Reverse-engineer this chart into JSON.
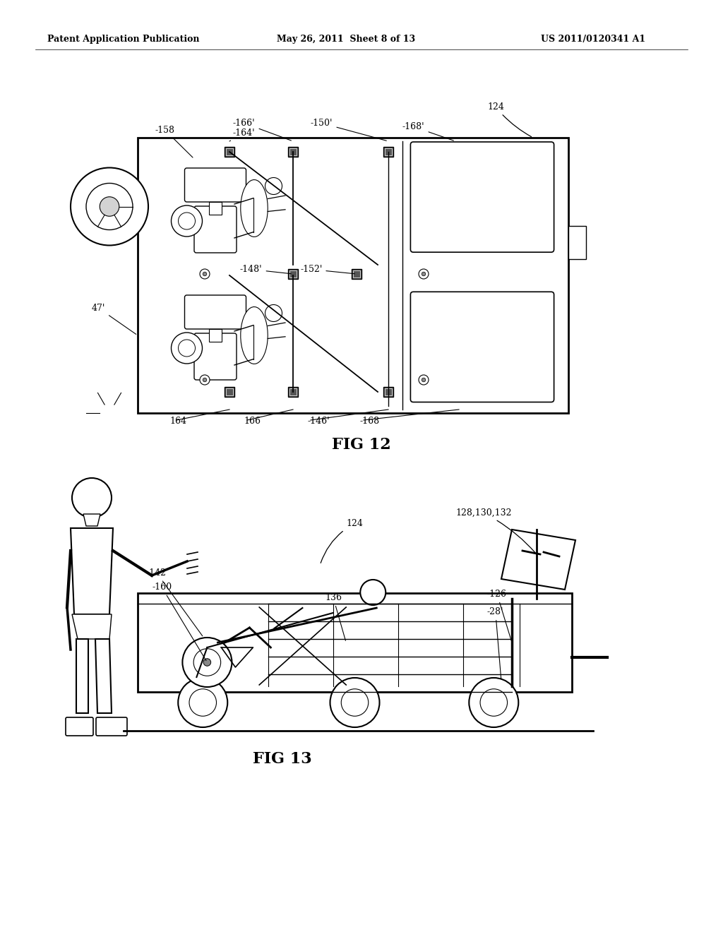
{
  "bg_color": "#ffffff",
  "header_left": "Patent Application Publication",
  "header_center": "May 26, 2011  Sheet 8 of 13",
  "header_right": "US 2011/0120341 A1",
  "fig12_label": "FIG 12",
  "fig13_label": "FIG 13"
}
